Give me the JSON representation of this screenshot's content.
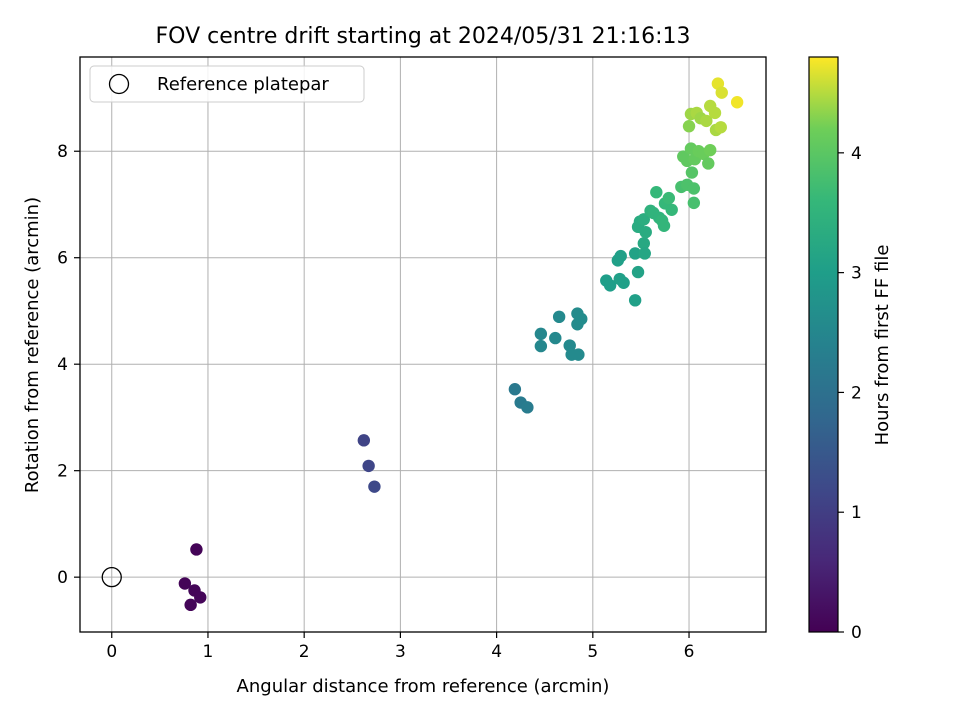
{
  "chart_data": {
    "type": "scatter",
    "title": "FOV centre drift starting at 2024/05/31 21:16:13",
    "xlabel": "Angular distance from reference (arcmin)",
    "ylabel": "Rotation from reference (arcmin)",
    "xlim": [
      -0.33,
      6.8
    ],
    "ylim": [
      -1.03,
      9.77
    ],
    "xticks": [
      0,
      1,
      2,
      3,
      4,
      5,
      6
    ],
    "yticks": [
      0,
      2,
      4,
      6,
      8
    ],
    "grid": true,
    "legend": {
      "placement": "top-left",
      "entries": [
        "Reference platepar"
      ]
    },
    "colorbar": {
      "label": "Hours from first FF file",
      "colormap": "viridis",
      "range": [
        0,
        4.8
      ],
      "ticks": [
        0,
        1,
        2,
        3,
        4
      ]
    },
    "reference_point": {
      "x": 0,
      "y": 0
    },
    "points": [
      {
        "x": 0.88,
        "y": 0.52,
        "c": 0.05
      },
      {
        "x": 0.76,
        "y": -0.12,
        "c": 0.05
      },
      {
        "x": 0.86,
        "y": -0.25,
        "c": 0.07
      },
      {
        "x": 0.92,
        "y": -0.38,
        "c": 0.08
      },
      {
        "x": 0.82,
        "y": -0.52,
        "c": 0.06
      },
      {
        "x": 2.62,
        "y": 2.57,
        "c": 1.1
      },
      {
        "x": 2.67,
        "y": 2.09,
        "c": 1.15
      },
      {
        "x": 2.73,
        "y": 1.7,
        "c": 1.2
      },
      {
        "x": 4.19,
        "y": 3.53,
        "c": 2.2
      },
      {
        "x": 4.25,
        "y": 3.28,
        "c": 2.22
      },
      {
        "x": 4.32,
        "y": 3.19,
        "c": 2.25
      },
      {
        "x": 4.46,
        "y": 4.57,
        "c": 2.5
      },
      {
        "x": 4.46,
        "y": 4.34,
        "c": 2.5
      },
      {
        "x": 4.61,
        "y": 4.49,
        "c": 2.52
      },
      {
        "x": 4.65,
        "y": 4.89,
        "c": 2.55
      },
      {
        "x": 4.76,
        "y": 4.35,
        "c": 2.55
      },
      {
        "x": 4.78,
        "y": 4.18,
        "c": 2.57
      },
      {
        "x": 4.85,
        "y": 4.18,
        "c": 2.58
      },
      {
        "x": 4.84,
        "y": 4.95,
        "c": 2.6
      },
      {
        "x": 4.84,
        "y": 4.75,
        "c": 2.6
      },
      {
        "x": 4.88,
        "y": 4.85,
        "c": 2.62
      },
      {
        "x": 5.14,
        "y": 5.57,
        "c": 3.0
      },
      {
        "x": 5.18,
        "y": 5.48,
        "c": 3.0
      },
      {
        "x": 5.26,
        "y": 5.95,
        "c": 3.05
      },
      {
        "x": 5.29,
        "y": 6.03,
        "c": 3.05
      },
      {
        "x": 5.28,
        "y": 5.6,
        "c": 3.05
      },
      {
        "x": 5.32,
        "y": 5.53,
        "c": 3.05
      },
      {
        "x": 5.44,
        "y": 6.08,
        "c": 3.1
      },
      {
        "x": 5.44,
        "y": 5.2,
        "c": 3.05
      },
      {
        "x": 5.47,
        "y": 5.73,
        "c": 3.1
      },
      {
        "x": 5.47,
        "y": 6.58,
        "c": 3.3
      },
      {
        "x": 5.49,
        "y": 6.68,
        "c": 3.3
      },
      {
        "x": 5.53,
        "y": 6.27,
        "c": 3.25
      },
      {
        "x": 5.54,
        "y": 6.08,
        "c": 3.2
      },
      {
        "x": 5.55,
        "y": 6.48,
        "c": 3.3
      },
      {
        "x": 5.53,
        "y": 6.72,
        "c": 3.35
      },
      {
        "x": 5.6,
        "y": 6.88,
        "c": 3.45
      },
      {
        "x": 5.63,
        "y": 6.84,
        "c": 3.5
      },
      {
        "x": 5.66,
        "y": 7.23,
        "c": 3.6
      },
      {
        "x": 5.69,
        "y": 6.75,
        "c": 3.5
      },
      {
        "x": 5.72,
        "y": 6.7,
        "c": 3.55
      },
      {
        "x": 5.74,
        "y": 6.6,
        "c": 3.55
      },
      {
        "x": 5.75,
        "y": 7.02,
        "c": 3.6
      },
      {
        "x": 5.79,
        "y": 7.12,
        "c": 3.65
      },
      {
        "x": 5.82,
        "y": 6.9,
        "c": 3.6
      },
      {
        "x": 5.92,
        "y": 7.33,
        "c": 3.8
      },
      {
        "x": 5.98,
        "y": 7.37,
        "c": 3.85
      },
      {
        "x": 6.05,
        "y": 7.03,
        "c": 3.8
      },
      {
        "x": 6.05,
        "y": 7.3,
        "c": 3.85
      },
      {
        "x": 6.03,
        "y": 7.6,
        "c": 3.95
      },
      {
        "x": 5.94,
        "y": 7.9,
        "c": 4.05
      },
      {
        "x": 5.98,
        "y": 7.82,
        "c": 4.05
      },
      {
        "x": 6.02,
        "y": 8.05,
        "c": 4.1
      },
      {
        "x": 6.06,
        "y": 7.85,
        "c": 4.1
      },
      {
        "x": 6.1,
        "y": 8.0,
        "c": 4.15
      },
      {
        "x": 6.15,
        "y": 7.95,
        "c": 4.15
      },
      {
        "x": 6.2,
        "y": 7.77,
        "c": 4.1
      },
      {
        "x": 6.22,
        "y": 8.02,
        "c": 4.2
      },
      {
        "x": 6.0,
        "y": 8.47,
        "c": 4.3
      },
      {
        "x": 6.02,
        "y": 8.7,
        "c": 4.4
      },
      {
        "x": 6.08,
        "y": 8.72,
        "c": 4.45
      },
      {
        "x": 6.12,
        "y": 8.62,
        "c": 4.4
      },
      {
        "x": 6.18,
        "y": 8.57,
        "c": 4.45
      },
      {
        "x": 6.22,
        "y": 8.85,
        "c": 4.5
      },
      {
        "x": 6.27,
        "y": 8.72,
        "c": 4.5
      },
      {
        "x": 6.28,
        "y": 8.4,
        "c": 4.45
      },
      {
        "x": 6.33,
        "y": 8.45,
        "c": 4.5
      },
      {
        "x": 6.3,
        "y": 9.27,
        "c": 4.7
      },
      {
        "x": 6.34,
        "y": 9.1,
        "c": 4.65
      },
      {
        "x": 6.5,
        "y": 8.92,
        "c": 4.75
      }
    ]
  }
}
